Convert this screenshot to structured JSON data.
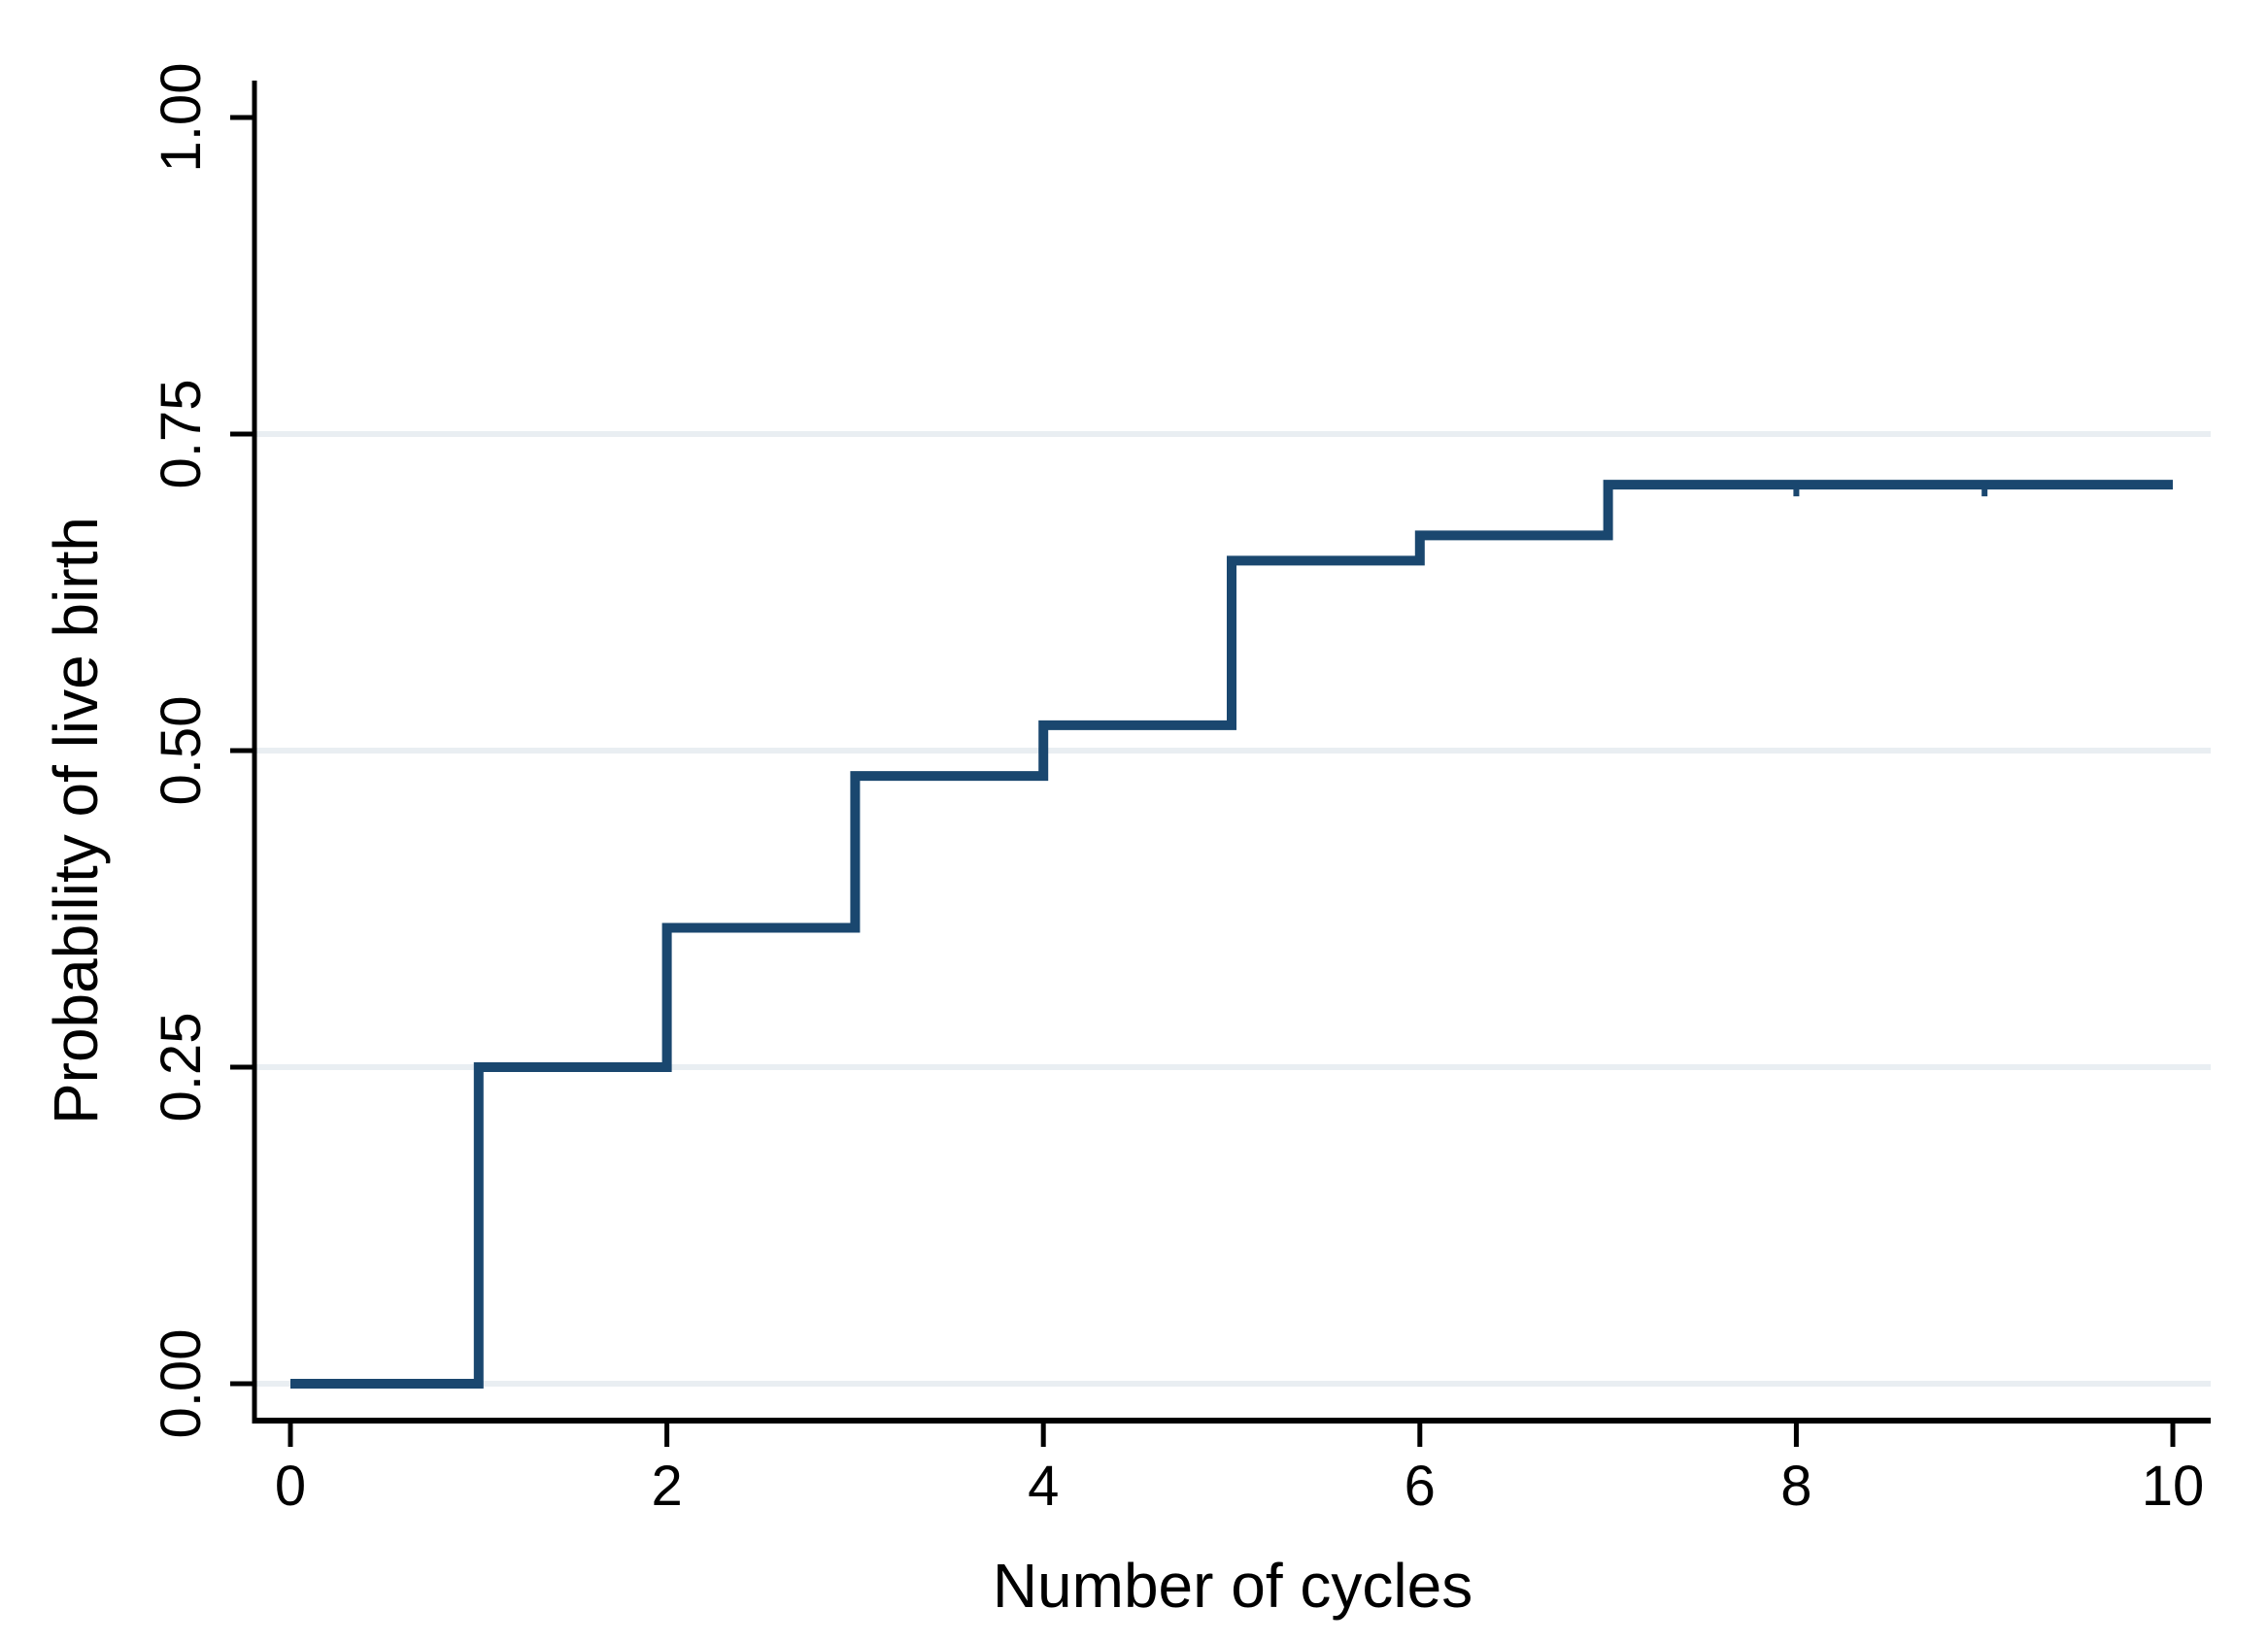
{
  "chart_data": {
    "type": "line",
    "subtype": "step",
    "title": "",
    "xlabel": "Number of cycles",
    "ylabel": "Probability of live birth",
    "xlim": [
      0,
      10
    ],
    "ylim": [
      0,
      1
    ],
    "x_ticks": [
      0,
      2,
      4,
      6,
      8,
      10
    ],
    "x_tick_labels": [
      "0",
      "2",
      "4",
      "6",
      "8",
      "10"
    ],
    "y_ticks": [
      0,
      0.25,
      0.5,
      0.75,
      1
    ],
    "y_tick_labels": [
      "0.00",
      "0.25",
      "0.50",
      "0.75",
      "1.00"
    ],
    "gridlines_at_y": [
      0,
      0.25,
      0.5,
      0.75
    ],
    "grid": true,
    "legend": "none",
    "series": [
      {
        "name": "Probability of live birth",
        "step_points": [
          {
            "x": 0,
            "y": 0.0
          },
          {
            "x": 1,
            "y": 0.25
          },
          {
            "x": 2,
            "y": 0.36
          },
          {
            "x": 3,
            "y": 0.48
          },
          {
            "x": 4,
            "y": 0.52
          },
          {
            "x": 5,
            "y": 0.65
          },
          {
            "x": 6,
            "y": 0.67
          },
          {
            "x": 7,
            "y": 0.71
          },
          {
            "x": 10,
            "y": 0.71
          }
        ],
        "censor_marks_x": [
          8,
          9
        ]
      }
    ],
    "colors": {
      "line": "#1a476f",
      "gridline": "#e9eef2",
      "axis": "#000000",
      "background": "#ffffff"
    }
  }
}
